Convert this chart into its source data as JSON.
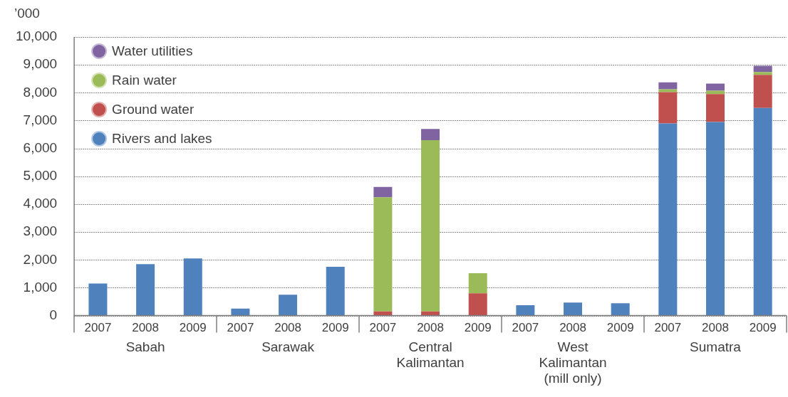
{
  "chart_data": {
    "type": "bar",
    "stacked": true,
    "ylabel": "’000",
    "categories": [
      "2007",
      "2008",
      "2009",
      "2007",
      "2008",
      "2009",
      "2007",
      "2008",
      "2009",
      "2007",
      "2008",
      "2009",
      "2007",
      "2008",
      "2009"
    ],
    "annotations": [
      "Sabah",
      "Sarawak",
      "Central Kalimantan",
      "West Kalimantan (mill only)",
      "Sumatra"
    ],
    "series": [
      {
        "name": "Rivers and lakes",
        "color": "#4f81bd",
        "values": [
          1150,
          1850,
          2050,
          250,
          750,
          1750,
          0,
          0,
          0,
          370,
          470,
          440,
          6900,
          6950,
          7450
        ]
      },
      {
        "name": "Ground water",
        "color": "#c0504d",
        "values": [
          0,
          0,
          0,
          0,
          0,
          0,
          150,
          150,
          800,
          0,
          0,
          0,
          1120,
          1000,
          1190
        ]
      },
      {
        "name": "Rain water",
        "color": "#9bbb59",
        "values": [
          0,
          0,
          0,
          0,
          0,
          0,
          4100,
          6150,
          720,
          0,
          0,
          0,
          100,
          125,
          100
        ]
      },
      {
        "name": "Water utilities",
        "color": "#8064a2",
        "values": [
          0,
          0,
          0,
          0,
          0,
          0,
          370,
          400,
          0,
          0,
          0,
          0,
          250,
          250,
          225
        ]
      }
    ],
    "ylim": [
      0,
      10000
    ],
    "yticks": [
      {
        "value": 0,
        "label": "0"
      },
      {
        "value": 1000,
        "label": "1,000"
      },
      {
        "value": 2000,
        "label": "2,000"
      },
      {
        "value": 3000,
        "label": "3,000"
      },
      {
        "value": 4000,
        "label": "4,000"
      },
      {
        "value": 5000,
        "label": "5,000"
      },
      {
        "value": 6000,
        "label": "6,000"
      },
      {
        "value": 7000,
        "label": "7,000"
      },
      {
        "value": 8000,
        "label": "8,000"
      },
      {
        "value": 9000,
        "label": "9,000"
      },
      {
        "value": 10000,
        "label": "10,000"
      }
    ],
    "grid": "y",
    "legend": "top left"
  }
}
